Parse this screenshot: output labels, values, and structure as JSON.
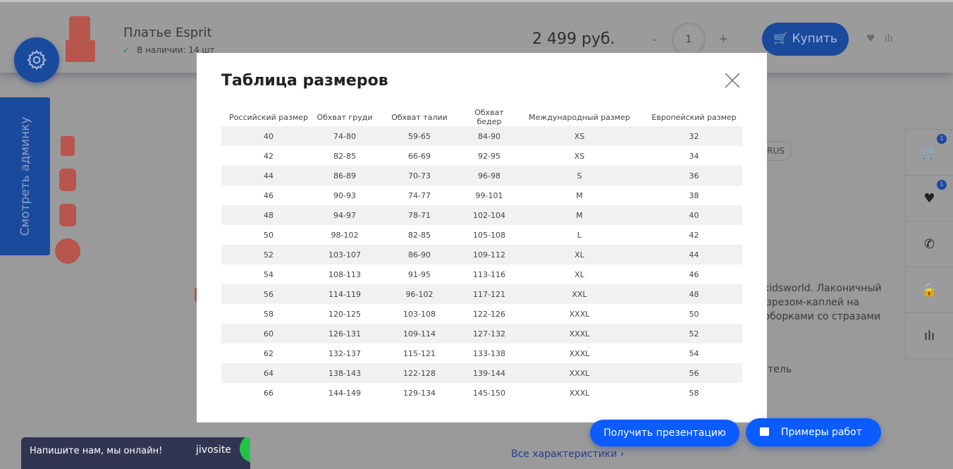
{
  "header": {
    "product_title": "Платье Esprit",
    "stock": "В наличии: 14 шт",
    "price": "2 499 руб.",
    "qty_minus": "-",
    "qty_value": "1",
    "qty_plus": "+",
    "buy_label": "Купить"
  },
  "sidebar": {
    "admin_label": "Смотреть админку"
  },
  "right_panel": {
    "cart_count": "1",
    "favorites_count": "1"
  },
  "page": {
    "tag": "RUS",
    "description": [
      "a kidsworld. Лаконичный",
      "разрезом-каплей на",
      "и оборками со стразами"
    ],
    "maker": "итель",
    "all_specs": "Все характеристики  ›"
  },
  "modal": {
    "title": "Таблица размеров",
    "columns": [
      "Российский размер",
      "Обхват груди",
      "Обхват талии",
      "Обхват бедер",
      "Международный размер",
      "Европейский размер"
    ],
    "rows": [
      [
        "40",
        "74-80",
        "59-65",
        "84-90",
        "XS",
        "32"
      ],
      [
        "42",
        "82-85",
        "66-69",
        "92-95",
        "XS",
        "34"
      ],
      [
        "44",
        "86-89",
        "70-73",
        "96-98",
        "S",
        "36"
      ],
      [
        "46",
        "90-93",
        "74-77",
        "99-101",
        "M",
        "38"
      ],
      [
        "48",
        "94-97",
        "78-71",
        "102-104",
        "M",
        "40"
      ],
      [
        "50",
        "98-102",
        "82-85",
        "105-108",
        "L",
        "42"
      ],
      [
        "52",
        "103-107",
        "86-90",
        "109-112",
        "XL",
        "44"
      ],
      [
        "54",
        "108-113",
        "91-95",
        "113-116",
        "XL",
        "46"
      ],
      [
        "56",
        "114-119",
        "96-102",
        "117-121",
        "XXL",
        "48"
      ],
      [
        "58",
        "120-125",
        "103-108",
        "122-126",
        "XXXL",
        "50"
      ],
      [
        "60",
        "126-131",
        "109-114",
        "127-132",
        "XXXL",
        "52"
      ],
      [
        "62",
        "132-137",
        "115-121",
        "133-138",
        "XXXL",
        "54"
      ],
      [
        "64",
        "138-143",
        "122-128",
        "139-144",
        "XXXL",
        "56"
      ],
      [
        "66",
        "144-149",
        "129-134",
        "145-150",
        "XXXL",
        "58"
      ]
    ]
  },
  "floating": {
    "presentation": "Получить презентацию",
    "works": "Примеры работ"
  },
  "chat": {
    "text": "Напишите нам, мы онлайн!",
    "brand": "jivosite"
  },
  "colors": {
    "accent": "#0b5cff",
    "dimmed_accent": "#1a4a9c",
    "overlay": "#9a9a9a"
  }
}
